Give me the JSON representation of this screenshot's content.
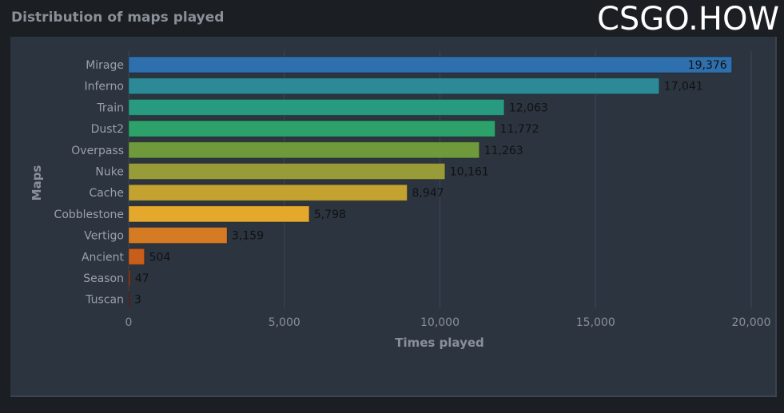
{
  "page": {
    "title": "Distribution of maps played",
    "brand": "CSGO.HOW"
  },
  "chart_data": {
    "type": "bar",
    "orientation": "horizontal",
    "categories": [
      "Mirage",
      "Inferno",
      "Train",
      "Dust2",
      "Overpass",
      "Nuke",
      "Cache",
      "Cobblestone",
      "Vertigo",
      "Ancient",
      "Season",
      "Tuscan"
    ],
    "values": [
      19376,
      17041,
      12063,
      11772,
      11263,
      10161,
      8947,
      5798,
      3159,
      504,
      47,
      3
    ],
    "value_labels": [
      "19,376",
      "17,041",
      "12,063",
      "11,772",
      "11,263",
      "10,161",
      "8,947",
      "5,798",
      "3,159",
      "504",
      "47",
      "3"
    ],
    "colors": [
      "#2e6fae",
      "#2b8a96",
      "#289a80",
      "#2ca26a",
      "#6e9a3c",
      "#979b38",
      "#c3a230",
      "#e3a82c",
      "#d47b24",
      "#c95d1a",
      "#a83a12",
      "#8a2a0e"
    ],
    "xlabel": "Times played",
    "ylabel": "Maps",
    "xlim": [
      0,
      20000
    ],
    "xticks": [
      0,
      5000,
      10000,
      15000,
      20000
    ],
    "xtick_labels": [
      "0",
      "5,000",
      "10,000",
      "15,000",
      "20,000"
    ],
    "grid": true
  }
}
